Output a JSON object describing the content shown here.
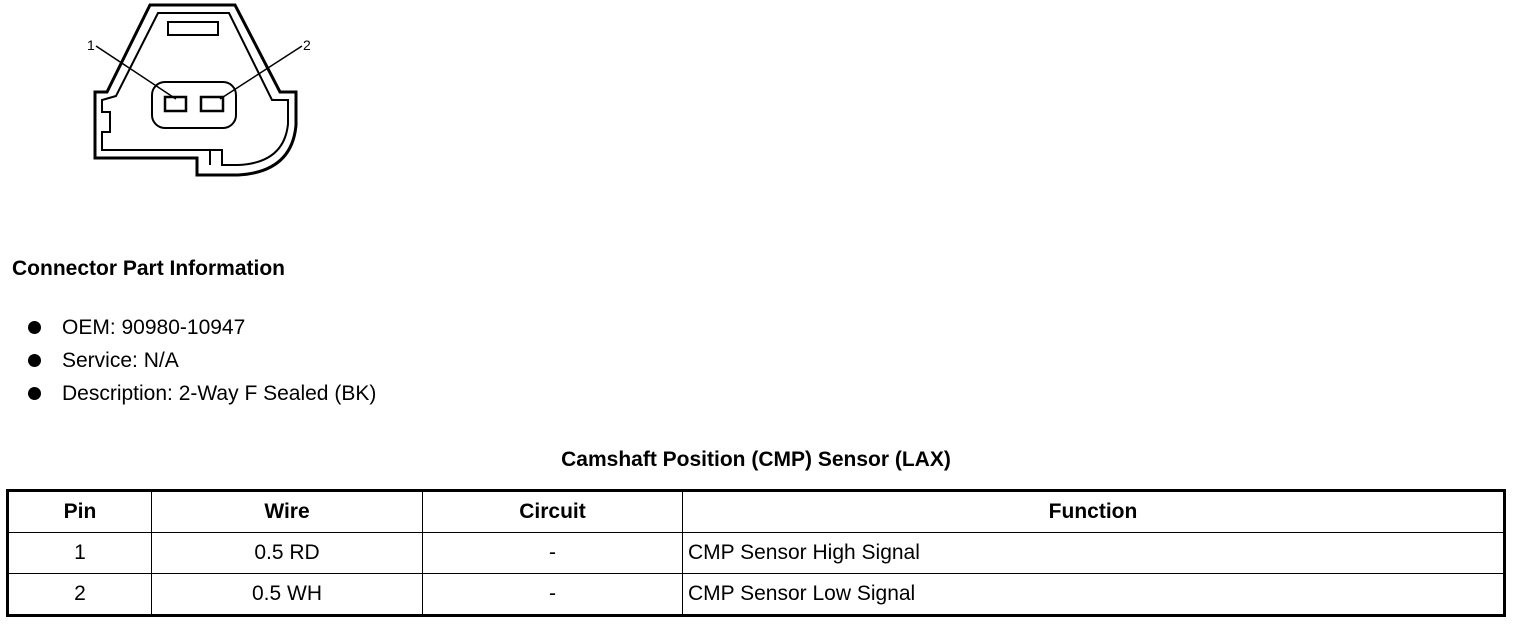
{
  "diagram": {
    "pin_labels": [
      "1",
      "2"
    ]
  },
  "heading": "Connector Part Information",
  "bullets": [
    "OEM: 90980-10947",
    "Service: N/A",
    "Description: 2-Way F Sealed (BK)"
  ],
  "table": {
    "title": "Camshaft Position (CMP) Sensor (LAX)",
    "headers": [
      "Pin",
      "Wire",
      "Circuit",
      "Function"
    ],
    "rows": [
      [
        "1",
        "0.5 RD",
        "-",
        "CMP Sensor High Signal"
      ],
      [
        "2",
        "0.5 WH",
        "-",
        "CMP Sensor Low Signal"
      ]
    ]
  }
}
